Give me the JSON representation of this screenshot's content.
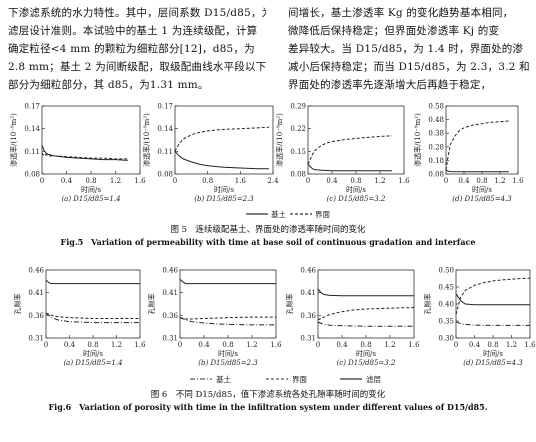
{
  "text": {
    "left": [
      "下渗滤系统的水力特性。其中，层间系数 D15/d85，为",
      "滤层设计准则。本试验中的基土 1 为连续级配，计算",
      "确定粒径<4 mm 的颗粒为细粒部分[12]，d85，为",
      "2.8 mm；基土 2 为间断级配，取级配曲线水平段以下",
      "部分为细粒部分，其 d85，为1.31 mm。"
    ],
    "right": [
      "间增长，基土渗透率 Kg 的变化趋势基本相同，",
      "微降低后保持稳定；但界面处渗透率 Kj 的变",
      "差异较大。当 D15/d85，为 1.4 时，界面处的渗",
      "减小后保持稳定；而当 D15/d85，为 2.3，3.2 和",
      "界面处的渗透率先逐渐增大后再趋于稳定，"
    ]
  },
  "fig5": {
    "caption_cn": "图 5　连续级配基土、界面处的渗透率随时间的变化",
    "caption_en": "Fig.5　Variation of permeability with time at base soil of continuous gradation and interface",
    "legend": [
      "基土",
      "界面"
    ]
  },
  "fig6": {
    "caption_cn": "图 6　不同 D15/d85，值下渗滤系统各处孔隙率随时间的变化",
    "caption_en": "Fig.6　Variation of porosity with time in the infiltration system under different values of D15/d85.",
    "legend": [
      "基土",
      "界面",
      "滤层"
    ]
  },
  "chart_data": [
    {
      "type": "line",
      "title": "(a) D15/d85=1.4",
      "xlabel": "时间/s",
      "ylabel": "渗透率/(10⁻⁹m²)",
      "xlim": [
        0,
        1.6
      ],
      "ylim": [
        0.08,
        0.17
      ],
      "yticks": [
        "0.08",
        "0.11",
        "0.14",
        "0.17"
      ],
      "xticks": [
        "0",
        "0.4",
        "0.8",
        "1.2",
        "1.6"
      ],
      "series": [
        {
          "name": "基土",
          "dash": "solid",
          "x": [
            0,
            0.03,
            0.06,
            0.1,
            0.2,
            0.4,
            0.6,
            0.8,
            1.0,
            1.2,
            1.4
          ],
          "y": [
            0.118,
            0.112,
            0.108,
            0.106,
            0.104,
            0.102,
            0.101,
            0.1,
            0.099,
            0.099,
            0.098
          ]
        },
        {
          "name": "界面",
          "dash": "dash",
          "x": [
            0,
            0.03,
            0.06,
            0.1,
            0.2,
            0.4,
            0.6,
            0.8,
            1.0,
            1.2,
            1.4
          ],
          "y": [
            0.108,
            0.104,
            0.106,
            0.104,
            0.104,
            0.103,
            0.102,
            0.101,
            0.101,
            0.1,
            0.1
          ]
        }
      ]
    },
    {
      "type": "line",
      "title": "(b) D15/d85=2.3",
      "xlabel": "时间/s",
      "ylabel": "渗透率/(10⁻⁹m²)",
      "xlim": [
        0,
        2.4
      ],
      "ylim": [
        0.08,
        0.17
      ],
      "yticks": [
        "0.08",
        "0.11",
        "0.14",
        "0.17"
      ],
      "xticks": [
        "0",
        "0.8",
        "1.6",
        "2.4"
      ],
      "series": [
        {
          "name": "基土",
          "dash": "solid",
          "x": [
            0,
            0.1,
            0.2,
            0.4,
            0.6,
            0.8,
            1.2,
            1.6,
            2.0,
            2.3
          ],
          "y": [
            0.11,
            0.104,
            0.1,
            0.096,
            0.093,
            0.091,
            0.089,
            0.088,
            0.087,
            0.087
          ]
        },
        {
          "name": "界面",
          "dash": "dash",
          "x": [
            0,
            0.1,
            0.2,
            0.4,
            0.6,
            0.8,
            1.2,
            1.6,
            2.0,
            2.3
          ],
          "y": [
            0.11,
            0.12,
            0.126,
            0.132,
            0.135,
            0.137,
            0.139,
            0.14,
            0.141,
            0.142
          ]
        }
      ]
    },
    {
      "type": "line",
      "title": "(c) D15/d85=3.2",
      "xlabel": "时间/s",
      "ylabel": "渗透率/(10⁻⁹m²)",
      "xlim": [
        0,
        1.6
      ],
      "ylim": [
        0.08,
        0.29
      ],
      "yticks": [
        "0.08",
        "0.15",
        "0.22",
        "0.29"
      ],
      "xticks": [
        "0",
        "0.4",
        "0.8",
        "1.2",
        "1.6"
      ],
      "series": [
        {
          "name": "基土",
          "dash": "solid",
          "x": [
            0,
            0.05,
            0.1,
            0.2,
            0.4,
            0.8,
            1.2,
            1.4
          ],
          "y": [
            0.11,
            0.1,
            0.094,
            0.092,
            0.09,
            0.09,
            0.09,
            0.09
          ]
        },
        {
          "name": "界面",
          "dash": "dash",
          "x": [
            0,
            0.05,
            0.1,
            0.2,
            0.3,
            0.4,
            0.6,
            0.8,
            1.0,
            1.2,
            1.4
          ],
          "y": [
            0.11,
            0.13,
            0.15,
            0.165,
            0.175,
            0.18,
            0.186,
            0.19,
            0.193,
            0.196,
            0.198
          ]
        }
      ]
    },
    {
      "type": "line",
      "title": "(d) D15/d85=4.3",
      "xlabel": "时间/s",
      "ylabel": "渗透率/(10⁻⁹m²)",
      "xlim": [
        0,
        1.6
      ],
      "ylim": [
        0.08,
        0.58
      ],
      "yticks": [
        "0.08",
        "0.18",
        "0.28",
        "0.38",
        "0.48",
        "0.58"
      ],
      "xticks": [
        "0",
        "0.4",
        "0.8",
        "1.2",
        "1.6"
      ],
      "series": [
        {
          "name": "基土",
          "dash": "solid",
          "x": [
            0,
            0.05,
            0.1,
            0.4,
            0.8,
            1.2,
            1.4
          ],
          "y": [
            0.11,
            0.1,
            0.098,
            0.097,
            0.097,
            0.097,
            0.097
          ]
        },
        {
          "name": "界面",
          "dash": "dash",
          "x": [
            0,
            0.05,
            0.1,
            0.2,
            0.3,
            0.4,
            0.6,
            0.8,
            1.0,
            1.2,
            1.4
          ],
          "y": [
            0.11,
            0.22,
            0.3,
            0.36,
            0.4,
            0.42,
            0.44,
            0.45,
            0.46,
            0.465,
            0.47
          ]
        }
      ]
    },
    {
      "type": "line",
      "title": "(a) D15/d85=1.4",
      "xlabel": "时间/s",
      "ylabel": "孔隙率",
      "xlim": [
        0,
        1.6
      ],
      "ylim": [
        0.31,
        0.46
      ],
      "yticks": [
        "0.31",
        "0.36",
        "0.41",
        "0.46"
      ],
      "xticks": [
        "0",
        "0.4",
        "0.8",
        "1.2",
        "1.6"
      ],
      "series": [
        {
          "name": "滤层",
          "dash": "solid",
          "x": [
            0,
            0.05,
            0.1,
            0.4,
            0.8,
            1.2,
            1.6
          ],
          "y": [
            0.438,
            0.432,
            0.43,
            0.43,
            0.43,
            0.43,
            0.43
          ]
        },
        {
          "name": "界面",
          "dash": "dash",
          "x": [
            0,
            0.1,
            0.2,
            0.4,
            0.6,
            0.8,
            1.2,
            1.6
          ],
          "y": [
            0.365,
            0.36,
            0.357,
            0.355,
            0.354,
            0.353,
            0.353,
            0.353
          ]
        },
        {
          "name": "基土",
          "dash": "dashdot",
          "x": [
            0,
            0.1,
            0.2,
            0.4,
            0.6,
            0.8,
            1.2,
            1.6
          ],
          "y": [
            0.365,
            0.355,
            0.35,
            0.346,
            0.345,
            0.344,
            0.344,
            0.344
          ]
        }
      ]
    },
    {
      "type": "line",
      "title": "(b) D15/d85=2.3",
      "xlabel": "时间/s",
      "ylabel": "孔隙率",
      "xlim": [
        0,
        1.6
      ],
      "ylim": [
        0.31,
        0.46
      ],
      "yticks": [
        "0.31",
        "0.36",
        "0.41",
        "0.46"
      ],
      "xticks": [
        "0",
        "0.4",
        "0.8",
        "1.2",
        "1.6"
      ],
      "series": [
        {
          "name": "滤层",
          "dash": "solid",
          "x": [
            0,
            0.05,
            0.1,
            0.4,
            0.8,
            1.2,
            1.6
          ],
          "y": [
            0.44,
            0.433,
            0.43,
            0.43,
            0.43,
            0.43,
            0.43
          ]
        },
        {
          "name": "界面",
          "dash": "dash",
          "x": [
            0,
            0.1,
            0.2,
            0.4,
            0.6,
            0.8,
            1.2,
            1.6
          ],
          "y": [
            0.355,
            0.352,
            0.352,
            0.353,
            0.354,
            0.355,
            0.356,
            0.356
          ]
        },
        {
          "name": "基土",
          "dash": "dashdot",
          "x": [
            0,
            0.1,
            0.2,
            0.4,
            0.6,
            0.8,
            1.2,
            1.6
          ],
          "y": [
            0.355,
            0.35,
            0.346,
            0.343,
            0.341,
            0.34,
            0.339,
            0.339
          ]
        }
      ]
    },
    {
      "type": "line",
      "title": "(c) D15/d85=3.2",
      "xlabel": "时间/s",
      "ylabel": "孔隙率",
      "xlim": [
        0,
        1.6
      ],
      "ylim": [
        0.31,
        0.46
      ],
      "yticks": [
        "0.31",
        "0.36",
        "0.41",
        "0.46"
      ],
      "xticks": [
        "0",
        "0.4",
        "0.8",
        "1.2",
        "1.6"
      ],
      "series": [
        {
          "name": "滤层",
          "dash": "solid",
          "x": [
            0,
            0.05,
            0.1,
            0.2,
            0.4,
            0.8,
            1.2,
            1.6
          ],
          "y": [
            0.418,
            0.41,
            0.406,
            0.404,
            0.403,
            0.403,
            0.403,
            0.403
          ]
        },
        {
          "name": "界面",
          "dash": "dash",
          "x": [
            0,
            0.1,
            0.2,
            0.4,
            0.6,
            0.8,
            1.2,
            1.6
          ],
          "y": [
            0.35,
            0.356,
            0.362,
            0.368,
            0.372,
            0.374,
            0.376,
            0.377
          ]
        },
        {
          "name": "基土",
          "dash": "dashdot",
          "x": [
            0,
            0.1,
            0.2,
            0.4,
            0.8,
            1.2,
            1.6
          ],
          "y": [
            0.345,
            0.34,
            0.338,
            0.337,
            0.336,
            0.336,
            0.336
          ]
        }
      ]
    },
    {
      "type": "line",
      "title": "(d) D15/d85=4.3",
      "xlabel": "时间/s",
      "ylabel": "孔隙率",
      "xlim": [
        0,
        1.6
      ],
      "ylim": [
        0.3,
        0.5
      ],
      "yticks": [
        "0.30",
        "0.35",
        "0.40",
        "0.45",
        "0.50"
      ],
      "xticks": [
        "0",
        "0.4",
        "0.8",
        "1.2",
        "1.6"
      ],
      "series": [
        {
          "name": "界面",
          "dash": "dash",
          "x": [
            0,
            0.1,
            0.2,
            0.4,
            0.6,
            0.8,
            1.0,
            1.2,
            1.4,
            1.6
          ],
          "y": [
            0.37,
            0.42,
            0.44,
            0.455,
            0.463,
            0.468,
            0.471,
            0.473,
            0.475,
            0.476
          ]
        },
        {
          "name": "滤层",
          "dash": "solid",
          "x": [
            0,
            0.1,
            0.2,
            0.4,
            0.6,
            0.8,
            1.2,
            1.6
          ],
          "y": [
            0.43,
            0.41,
            0.4,
            0.398,
            0.398,
            0.398,
            0.398,
            0.398
          ]
        },
        {
          "name": "基土",
          "dash": "dashdot",
          "x": [
            0,
            0.1,
            0.2,
            0.4,
            0.8,
            1.2,
            1.6
          ],
          "y": [
            0.348,
            0.342,
            0.34,
            0.338,
            0.337,
            0.337,
            0.337
          ]
        }
      ]
    }
  ]
}
